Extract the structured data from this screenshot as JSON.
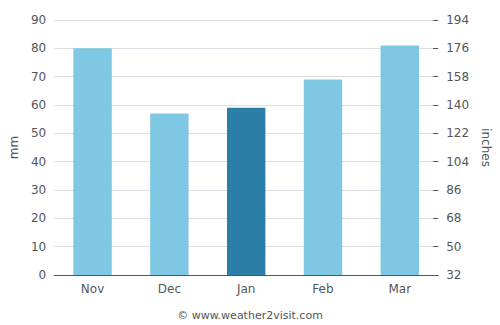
{
  "chart_data": {
    "type": "bar",
    "categories": [
      "Nov",
      "Dec",
      "Jan",
      "Feb",
      "Mar"
    ],
    "values": [
      80,
      57,
      59,
      69,
      81
    ],
    "colors": [
      "#7ec8e3",
      "#7ec8e3",
      "#2a7ea8",
      "#7ec8e3",
      "#7ec8e3"
    ],
    "ylabel": "mm",
    "y2label": "inches",
    "ylim": [
      0,
      90
    ],
    "yticks": [
      0,
      10,
      20,
      30,
      40,
      50,
      60,
      70,
      80,
      90
    ],
    "y2lim": [
      32,
      194
    ],
    "y2ticks": [
      32,
      50,
      68,
      86,
      104,
      122,
      140,
      158,
      176,
      194
    ],
    "grid": true,
    "annotation": "© www.weather2visit.com"
  }
}
